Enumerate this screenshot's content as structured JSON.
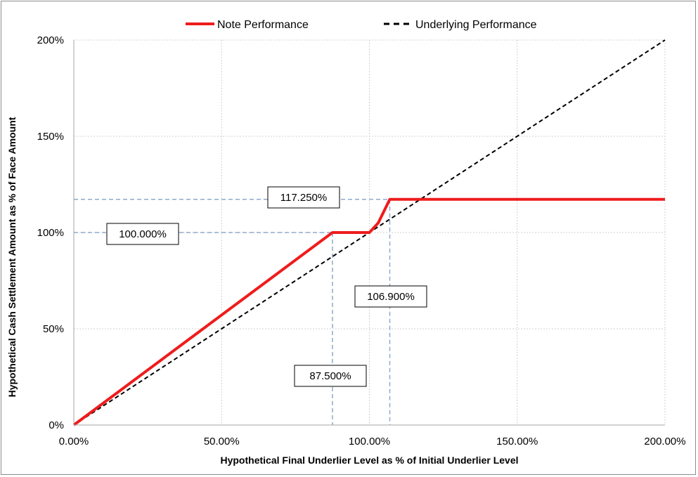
{
  "chart_data": {
    "type": "line",
    "xlabel": "Hypothetical Final Underlier Level as % of Initial Underlier Level",
    "ylabel": "Hypothetical Cash Settlement Amount as % of Face Amount",
    "xlim": [
      0,
      200
    ],
    "ylim": [
      0,
      200
    ],
    "x_ticks": [
      0,
      50,
      100,
      150,
      200
    ],
    "x_tick_labels": [
      "0.00%",
      "50.00%",
      "100.00%",
      "150.00%",
      "200.00%"
    ],
    "y_ticks": [
      0,
      50,
      100,
      150,
      200
    ],
    "y_tick_labels": [
      "0%",
      "50%",
      "100%",
      "150%",
      "200%"
    ],
    "grid": true,
    "legend_position": "top-center",
    "series": [
      {
        "name": "Note Performance",
        "color": "#ee1c1c",
        "style": "solid",
        "x": [
          0,
          87.5,
          100,
          103,
          106.9,
          200
        ],
        "y": [
          0,
          100,
          100,
          105,
          117.25,
          117.25
        ]
      },
      {
        "name": "Underlying Performance",
        "color": "#000000",
        "style": "dashed",
        "x": [
          0,
          200
        ],
        "y": [
          0,
          200
        ]
      }
    ],
    "annotations": [
      {
        "label": "117.250%",
        "x": 106.9,
        "y": 117.25,
        "guide": "horizontal"
      },
      {
        "label": "100.000%",
        "x": 87.5,
        "y": 100,
        "guide": "horizontal"
      },
      {
        "label": "106.900%",
        "x": 106.9,
        "y": 117.25,
        "guide": "vertical"
      },
      {
        "label": "87.500%",
        "x": 87.5,
        "y": 100,
        "guide": "vertical"
      }
    ],
    "guide_color": "#8eaacb"
  }
}
